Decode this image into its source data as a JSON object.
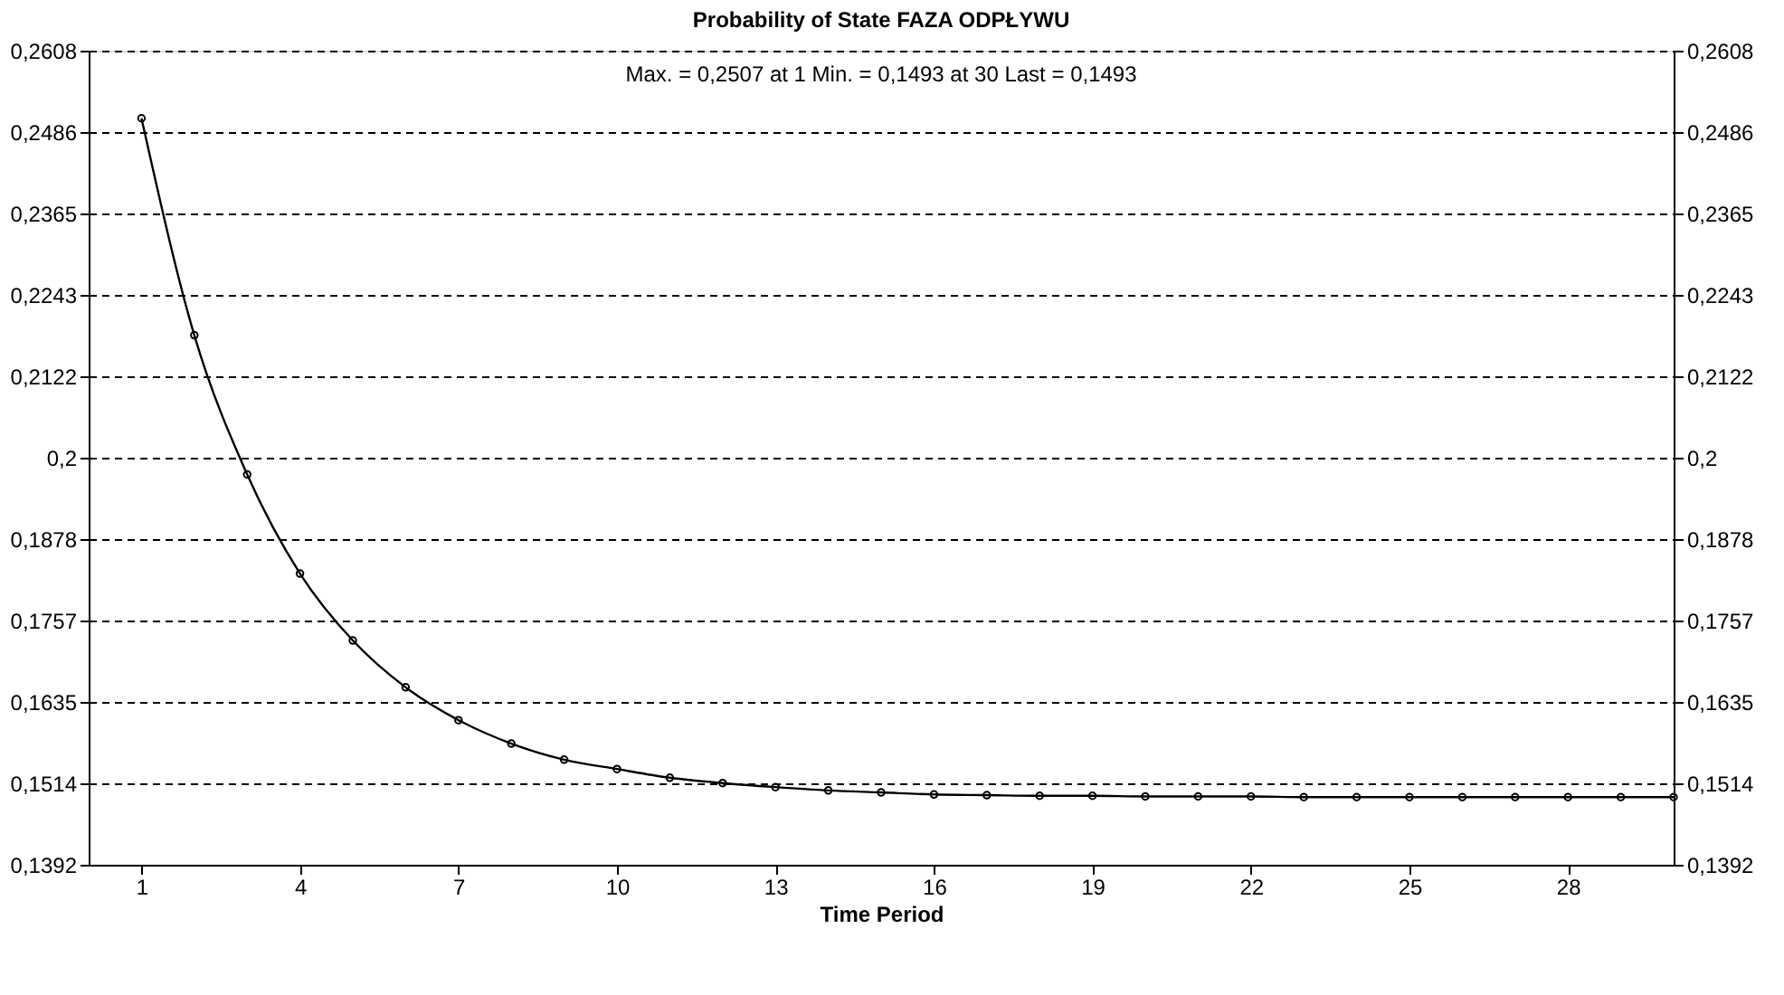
{
  "chart_data": {
    "type": "line",
    "title": "Probability of State FAZA ODPŁYWU",
    "xlabel": "Time Period",
    "annotations": [
      "Max. = 0,2507 at 1    Min. = 0,1493 at 30    Last = 0,1493"
    ],
    "x": [
      1,
      2,
      3,
      4,
      5,
      6,
      7,
      8,
      9,
      10,
      11,
      12,
      13,
      14,
      15,
      16,
      17,
      18,
      19,
      20,
      21,
      22,
      23,
      24,
      25,
      26,
      27,
      28,
      29,
      30
    ],
    "series": [
      {
        "color": "#000000",
        "values": [
          0.2507,
          0.2183,
          0.1975,
          0.1827,
          0.1727,
          0.1657,
          0.1608,
          0.1573,
          0.1549,
          0.1535,
          0.1522,
          0.1514,
          0.1508,
          0.1503,
          0.15,
          0.1497,
          0.1496,
          0.1495,
          0.1495,
          0.1494,
          0.1494,
          0.1494,
          0.1493,
          0.1493,
          0.1493,
          0.1493,
          0.1493,
          0.1493,
          0.1493,
          0.1493
        ]
      }
    ],
    "xlim": [
      0,
      30
    ],
    "xticks": [
      1,
      4,
      7,
      10,
      13,
      16,
      19,
      22,
      25,
      28
    ],
    "ylim": [
      0.1392,
      0.2608
    ],
    "yticks": [
      {
        "value": 0.1392,
        "label": "0,1392"
      },
      {
        "value": 0.1514,
        "label": "0,1514"
      },
      {
        "value": 0.1635,
        "label": "0,1635"
      },
      {
        "value": 0.1757,
        "label": "0,1757"
      },
      {
        "value": 0.1878,
        "label": "0,1878"
      },
      {
        "value": 0.2,
        "label": "0,2"
      },
      {
        "value": 0.2122,
        "label": "0,2122"
      },
      {
        "value": 0.2243,
        "label": "0,2243"
      },
      {
        "value": 0.2365,
        "label": "0,2365"
      },
      {
        "value": 0.2486,
        "label": "0,2486"
      },
      {
        "value": 0.2608,
        "label": "0,2608"
      }
    ],
    "y2lim": [
      0.1392,
      0.2608
    ],
    "y2ticks": [
      {
        "value": 0.1392,
        "label": "0,1392"
      },
      {
        "value": 0.1514,
        "label": "0,1514"
      },
      {
        "value": 0.1635,
        "label": "0,1635"
      },
      {
        "value": 0.1757,
        "label": "0,1757"
      },
      {
        "value": 0.1878,
        "label": "0,1878"
      },
      {
        "value": 0.2,
        "label": "0,2"
      },
      {
        "value": 0.2122,
        "label": "0,2122"
      },
      {
        "value": 0.2243,
        "label": "0,2243"
      },
      {
        "value": 0.2365,
        "label": "0,2365"
      },
      {
        "value": 0.2486,
        "label": "0,2486"
      },
      {
        "value": 0.2608,
        "label": "0,2608"
      }
    ],
    "grid": "y",
    "marker": "circle",
    "line_style": "solid"
  }
}
